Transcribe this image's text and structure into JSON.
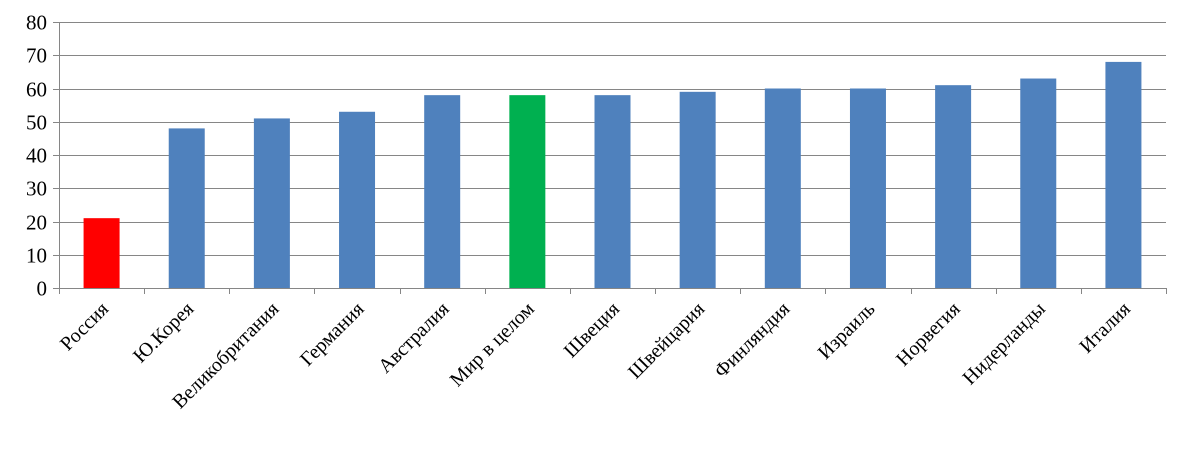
{
  "chart_data": {
    "type": "bar",
    "title": "",
    "xlabel": "",
    "ylabel": "",
    "categories": [
      "Россия",
      "Ю.Корея",
      "Великобритания",
      "Германия",
      "Австралия",
      "Мир в целом",
      "Швеция",
      "Швейцария",
      "Финляндия",
      "Израиль",
      "Норвегия",
      "Нидерланды",
      "Италия"
    ],
    "values": [
      21,
      48,
      51,
      53,
      58,
      58,
      58,
      59,
      60,
      60,
      61,
      63,
      68
    ],
    "bar_colors": [
      "#ff0000",
      "#4f81bd",
      "#4f81bd",
      "#4f81bd",
      "#4f81bd",
      "#00b050",
      "#4f81bd",
      "#4f81bd",
      "#4f81bd",
      "#4f81bd",
      "#4f81bd",
      "#4f81bd",
      "#4f81bd"
    ],
    "ylim": [
      0,
      80
    ],
    "yticks": [
      0,
      10,
      20,
      30,
      40,
      50,
      60,
      70,
      80
    ],
    "grid": true,
    "legend": "none"
  }
}
